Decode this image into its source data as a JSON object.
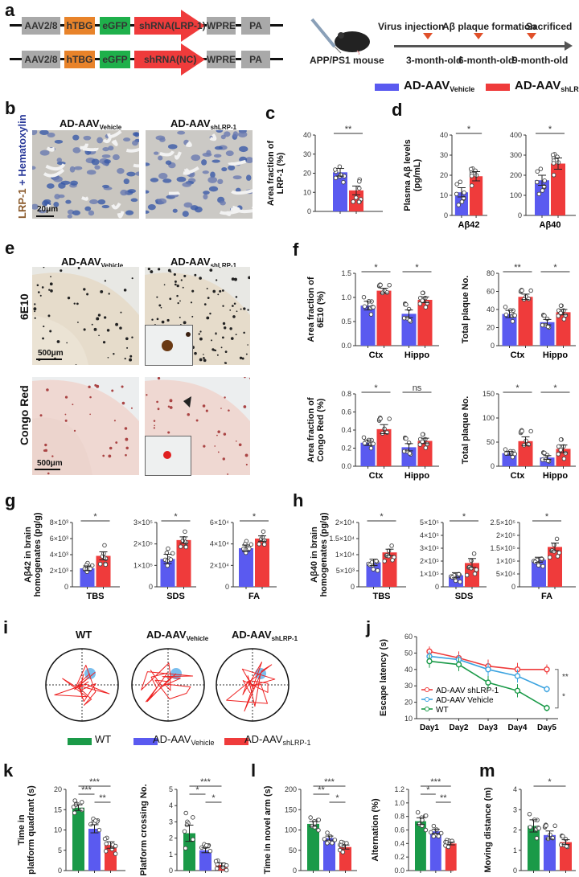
{
  "panels": {
    "a": {
      "label": "a",
      "constructs": [
        {
          "segments": [
            "AAV2/8",
            "hTBG",
            "eGFP",
            "shRNA(LRP-1)",
            "WPRE",
            "PA"
          ]
        },
        {
          "segments": [
            "AAV2/8",
            "hTBG",
            "eGFP",
            "shRNA(NC)",
            "WPRE",
            "PA"
          ]
        }
      ],
      "mouse_label": "APP/PS1 mouse",
      "timeline": {
        "events": [
          "Virus  injection",
          "Aβ plaque formation",
          "Sacrificed"
        ],
        "ages": [
          "3-month-old",
          "6-month-old",
          "9-month-old"
        ]
      }
    },
    "b": {
      "label": "b",
      "ylabel_part1": "LRP-1",
      "ylabel_part2": " + Hematoxylin",
      "titles": [
        {
          "main": "AD-AAV",
          "sub": "Vehicle"
        },
        {
          "main": "AD-AAV",
          "sub": "shLRP-1"
        }
      ],
      "scale": "20μm"
    },
    "c": {
      "label": "c"
    },
    "d": {
      "label": "d"
    },
    "e": {
      "label": "e",
      "titles": [
        {
          "main": "AD-AAV",
          "sub": "Vehicle"
        },
        {
          "main": "AD-AAV",
          "sub": "shLRP-1"
        }
      ],
      "rows": [
        "6E10",
        "Congo Red"
      ],
      "scale": "500μm"
    },
    "f": {
      "label": "f"
    },
    "g": {
      "label": "g"
    },
    "h": {
      "label": "h"
    },
    "i": {
      "label": "i",
      "titles": [
        {
          "main": "WT",
          "sub": ""
        },
        {
          "main": "AD-AAV",
          "sub": "Vehicle"
        },
        {
          "main": "AD-AAV",
          "sub": "shLRP-1"
        }
      ]
    },
    "j": {
      "label": "j"
    },
    "k": {
      "label": "k"
    },
    "l": {
      "label": "l"
    },
    "m": {
      "label": "m"
    }
  },
  "legend_top": [
    {
      "main": "AD-AAV",
      "sub": "Vehicle",
      "color": "#5a5af0"
    },
    {
      "main": "AD-AAV",
      "sub": "shLRP-1",
      "color": "#ef3b3b"
    }
  ],
  "legend_bottom": [
    {
      "main": "WT",
      "sub": "",
      "color": "#1a9a48"
    },
    {
      "main": "AD-AAV",
      "sub": "Vehicle",
      "color": "#5a5af0"
    },
    {
      "main": "AD-AAV",
      "sub": "shLRP-1",
      "color": "#ef3b3b"
    }
  ],
  "colors": {
    "vehicle": "#5a5af0",
    "shlrp": "#ef3b3b",
    "wt": "#1a9a48",
    "vehicle_line": "#3ba3e0"
  },
  "chart_data": [
    {
      "id": "c",
      "type": "bar",
      "ylabel": "Area fraction of\nLRP-1 (%)",
      "ylim": [
        0,
        40
      ],
      "yticks": [
        "0",
        "10",
        "20",
        "30",
        "40"
      ],
      "groups": [
        {
          "label": "",
          "values": [
            20.5,
            11.0
          ],
          "sem": [
            2.0,
            2.3
          ]
        }
      ],
      "sig": [
        {
          "text": "**"
        }
      ]
    },
    {
      "id": "d1",
      "type": "bar",
      "ylabel": "Plasma Aβ levels\n(pg/mL)",
      "ylim": [
        0,
        40
      ],
      "yticks": [
        "0",
        "10",
        "20",
        "30",
        "40"
      ],
      "groups": [
        {
          "label": "Aβ42",
          "values": [
            11.5,
            19.5
          ],
          "sem": [
            2.3,
            2.3
          ]
        }
      ],
      "sig": [
        {
          "text": "*"
        }
      ]
    },
    {
      "id": "d2",
      "type": "bar",
      "ylabel": "",
      "ylim": [
        0,
        400
      ],
      "yticks": [
        "0",
        "100",
        "200",
        "300",
        "400"
      ],
      "groups": [
        {
          "label": "Aβ40",
          "values": [
            175,
            258
          ],
          "sem": [
            25,
            28
          ]
        }
      ],
      "sig": [
        {
          "text": "*"
        }
      ]
    },
    {
      "id": "f1",
      "type": "bar",
      "ylabel": "Area fraction of\n6E10 (%)",
      "ylim": [
        0,
        1.5
      ],
      "yticks": [
        "0.0",
        "0.5",
        "1.0",
        "1.5"
      ],
      "groups": [
        {
          "label": "Ctx",
          "values": [
            0.83,
            1.14
          ],
          "sem": [
            0.09,
            0.05
          ]
        },
        {
          "label": "Hippo",
          "values": [
            0.66,
            0.95
          ],
          "sem": [
            0.08,
            0.06
          ]
        }
      ],
      "sig": [
        {
          "text": "*"
        },
        {
          "text": "*"
        }
      ]
    },
    {
      "id": "f2",
      "type": "bar",
      "ylabel": "Total plaque No.",
      "ylim": [
        0,
        80
      ],
      "yticks": [
        "0",
        "20",
        "40",
        "60",
        "80"
      ],
      "groups": [
        {
          "label": "Ctx",
          "values": [
            35,
            54
          ],
          "sem": [
            4,
            3
          ]
        },
        {
          "label": "Hippo",
          "values": [
            26,
            37
          ],
          "sem": [
            3,
            3
          ]
        }
      ],
      "sig": [
        {
          "text": "**"
        },
        {
          "text": "*"
        }
      ]
    },
    {
      "id": "f3",
      "type": "bar",
      "ylabel": "Area fraction of\nCongo Red (%)",
      "ylim": [
        0,
        0.8
      ],
      "yticks": [
        "0.0",
        "0.2",
        "0.4",
        "0.6",
        "0.8"
      ],
      "groups": [
        {
          "label": "Ctx",
          "values": [
            0.26,
            0.41
          ],
          "sem": [
            0.03,
            0.05
          ]
        },
        {
          "label": "Hippo",
          "values": [
            0.21,
            0.28
          ],
          "sem": [
            0.04,
            0.03
          ]
        }
      ],
      "sig": [
        {
          "text": "*"
        },
        {
          "text": "ns"
        }
      ]
    },
    {
      "id": "f4",
      "type": "bar",
      "ylabel": "Total plaque No.",
      "ylim": [
        0,
        150
      ],
      "yticks": [
        "0",
        "50",
        "100",
        "150"
      ],
      "groups": [
        {
          "label": "Ctx",
          "values": [
            27,
            52
          ],
          "sem": [
            4,
            9
          ]
        },
        {
          "label": "Hippo",
          "values": [
            18,
            36
          ],
          "sem": [
            4,
            8
          ]
        }
      ],
      "sig": [
        {
          "text": "*"
        },
        {
          "text": "*"
        }
      ]
    },
    {
      "id": "g1",
      "type": "bar",
      "ylabel": "Aβ42 in brain\nhomogenates (pg/g)",
      "ylim": [
        0,
        8000
      ],
      "yticks": [
        "0",
        "2×10³",
        "4×10³",
        "6×10³",
        "8×10³"
      ],
      "groups": [
        {
          "label": "TBS",
          "values": [
            2300,
            3850
          ],
          "sem": [
            300,
            500
          ]
        }
      ],
      "sig": [
        {
          "text": "*"
        }
      ]
    },
    {
      "id": "g2",
      "type": "bar",
      "ylabel": "",
      "ylim": [
        0,
        300000
      ],
      "yticks": [
        "0",
        "1×10⁵",
        "2×10⁵",
        "3×10⁵"
      ],
      "groups": [
        {
          "label": "SDS",
          "values": [
            130000,
            218000
          ],
          "sem": [
            22000,
            15000
          ]
        }
      ],
      "sig": [
        {
          "text": "*"
        }
      ]
    },
    {
      "id": "g3",
      "type": "bar",
      "ylabel": "",
      "ylim": [
        0,
        60000
      ],
      "yticks": [
        "0",
        "2×10⁴",
        "4×10⁴",
        "6×10⁴"
      ],
      "groups": [
        {
          "label": "FA",
          "values": [
            36000,
            45000
          ],
          "sem": [
            3000,
            2500
          ]
        }
      ],
      "sig": [
        {
          "text": "*"
        }
      ]
    },
    {
      "id": "h1",
      "type": "bar",
      "ylabel": "Aβ40 in brain\nhomogenates (pg/g)",
      "ylim": [
        0,
        20000
      ],
      "yticks": [
        "0",
        "5×10³",
        "1×10⁴",
        "1.5×10⁴",
        "2×10⁴"
      ],
      "groups": [
        {
          "label": "TBS",
          "values": [
            7600,
            10700
          ],
          "sem": [
            1000,
            1000
          ]
        }
      ],
      "sig": [
        {
          "text": "*"
        }
      ]
    },
    {
      "id": "h2",
      "type": "bar",
      "ylabel": "",
      "ylim": [
        0,
        500000
      ],
      "yticks": [
        "0",
        "1×10⁵",
        "2×10⁵",
        "3×10⁵",
        "4×10⁵",
        "5×10⁵"
      ],
      "groups": [
        {
          "label": "SDS",
          "values": [
            90000,
            185000
          ],
          "sem": [
            20000,
            35000
          ]
        }
      ],
      "sig": [
        {
          "text": "*"
        }
      ]
    },
    {
      "id": "h3",
      "type": "bar",
      "ylabel": "",
      "ylim": [
        0,
        250000
      ],
      "yticks": [
        "0",
        "5×10⁴",
        "1×10⁵",
        "1.5×10⁵",
        "2×10⁵",
        "2.5×10⁵"
      ],
      "groups": [
        {
          "label": "FA",
          "values": [
            105000,
            155000
          ],
          "sem": [
            10000,
            15000
          ]
        }
      ],
      "sig": [
        {
          "text": "*"
        }
      ]
    },
    {
      "id": "j",
      "type": "line",
      "ylabel": "Escape latency (s)",
      "ylim": [
        10,
        60
      ],
      "yticks": [
        "10",
        "20",
        "30",
        "40",
        "50",
        "60"
      ],
      "x": [
        "Day1",
        "Day2",
        "Day3",
        "Day4",
        "Day5"
      ],
      "series": [
        {
          "name": "AD-AAV shLRP-1",
          "values": [
            51,
            47,
            42,
            40,
            40
          ],
          "sem": [
            3,
            4,
            4,
            4,
            3
          ]
        },
        {
          "name": "AD-AAV Vehicle",
          "values": [
            48,
            46,
            40,
            36,
            28
          ],
          "sem": [
            3,
            3,
            4,
            4,
            2
          ]
        },
        {
          "name": "WT",
          "values": [
            45,
            43,
            32,
            27,
            16.5
          ],
          "sem": [
            4,
            4,
            4,
            4,
            2
          ]
        }
      ],
      "legend": [
        "AD-AAV shLRP-1",
        "AD-AAV Vehicle",
        "WT"
      ],
      "sig": [
        "**",
        "*"
      ]
    },
    {
      "id": "k1",
      "type": "bar3",
      "ylabel": "Time in\nplatform quadrant (s)",
      "ylim": [
        0,
        20
      ],
      "yticks": [
        "0",
        "5",
        "10",
        "15",
        "20"
      ],
      "values": [
        15.5,
        10.3,
        6.3
      ],
      "sem": [
        0.7,
        1.0,
        0.8
      ],
      "sig": [
        "***",
        "***",
        "**"
      ]
    },
    {
      "id": "k2",
      "type": "bar3",
      "ylabel": "Platform crossing No.",
      "ylim": [
        0,
        5
      ],
      "yticks": [
        "0",
        "1",
        "2",
        "3",
        "4",
        "5"
      ],
      "values": [
        2.3,
        1.25,
        0.35
      ],
      "sem": [
        0.5,
        0.15,
        0.12
      ],
      "sig": [
        "***",
        "*",
        "*"
      ]
    },
    {
      "id": "l1",
      "type": "bar3",
      "ylabel": "Time in novel arm (s)",
      "ylim": [
        0,
        200
      ],
      "yticks": [
        "0",
        "50",
        "100",
        "150",
        "200"
      ],
      "values": [
        115,
        80,
        58
      ],
      "sem": [
        6,
        5,
        5
      ],
      "sig": [
        "***",
        "**",
        "*"
      ]
    },
    {
      "id": "l2",
      "type": "bar3",
      "ylabel": "Alternation (%)",
      "ylim": [
        0,
        1.2
      ],
      "yticks": [
        "0.0",
        "0.2",
        "0.4",
        "0.6",
        "0.8",
        "1.0",
        "1.2"
      ],
      "values": [
        0.73,
        0.58,
        0.4
      ],
      "sem": [
        0.05,
        0.03,
        0.02
      ],
      "sig": [
        "***",
        "*",
        "**"
      ]
    },
    {
      "id": "m",
      "type": "bar3",
      "ylabel": "Moving distance (m)",
      "ylim": [
        0,
        4
      ],
      "yticks": [
        "0",
        "1",
        "2",
        "3",
        "4"
      ],
      "values": [
        2.2,
        1.75,
        1.4
      ],
      "sem": [
        0.3,
        0.2,
        0.12
      ],
      "sig": [
        "*"
      ]
    }
  ]
}
